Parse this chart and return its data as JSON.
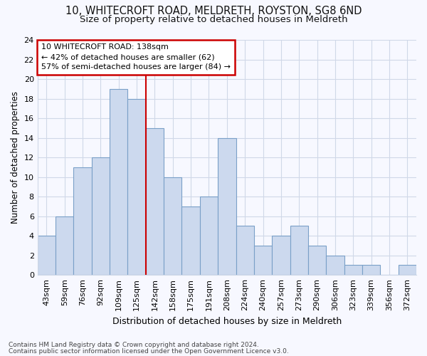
{
  "title1": "10, WHITECROFT ROAD, MELDRETH, ROYSTON, SG8 6ND",
  "title2": "Size of property relative to detached houses in Meldreth",
  "xlabel": "Distribution of detached houses by size in Meldreth",
  "ylabel": "Number of detached properties",
  "categories": [
    "43sqm",
    "59sqm",
    "76sqm",
    "92sqm",
    "109sqm",
    "125sqm",
    "142sqm",
    "158sqm",
    "175sqm",
    "191sqm",
    "208sqm",
    "224sqm",
    "240sqm",
    "257sqm",
    "273sqm",
    "290sqm",
    "306sqm",
    "323sqm",
    "339sqm",
    "356sqm",
    "372sqm"
  ],
  "values": [
    4,
    6,
    11,
    12,
    19,
    18,
    15,
    10,
    7,
    8,
    14,
    5,
    3,
    4,
    5,
    3,
    2,
    1,
    1,
    0,
    1
  ],
  "bar_color": "#ccd9ee",
  "bar_edge_color": "#7aa0c8",
  "highlight_index": 6,
  "ylim": [
    0,
    24
  ],
  "yticks": [
    0,
    2,
    4,
    6,
    8,
    10,
    12,
    14,
    16,
    18,
    20,
    22,
    24
  ],
  "annotation_title": "10 WHITECROFT ROAD: 138sqm",
  "annotation_line1": "← 42% of detached houses are smaller (62)",
  "annotation_line2": "57% of semi-detached houses are larger (84) →",
  "annotation_box_color": "#ffffff",
  "annotation_box_edge": "#cc0000",
  "vline_color": "#cc0000",
  "footer1": "Contains HM Land Registry data © Crown copyright and database right 2024.",
  "footer2": "Contains public sector information licensed under the Open Government Licence v3.0.",
  "bg_color": "#f7f8ff",
  "grid_color": "#d0d8e8",
  "title1_fontsize": 10.5,
  "title2_fontsize": 9.5,
  "xlabel_fontsize": 9,
  "ylabel_fontsize": 8.5,
  "tick_fontsize": 8,
  "bar_width": 1.0
}
